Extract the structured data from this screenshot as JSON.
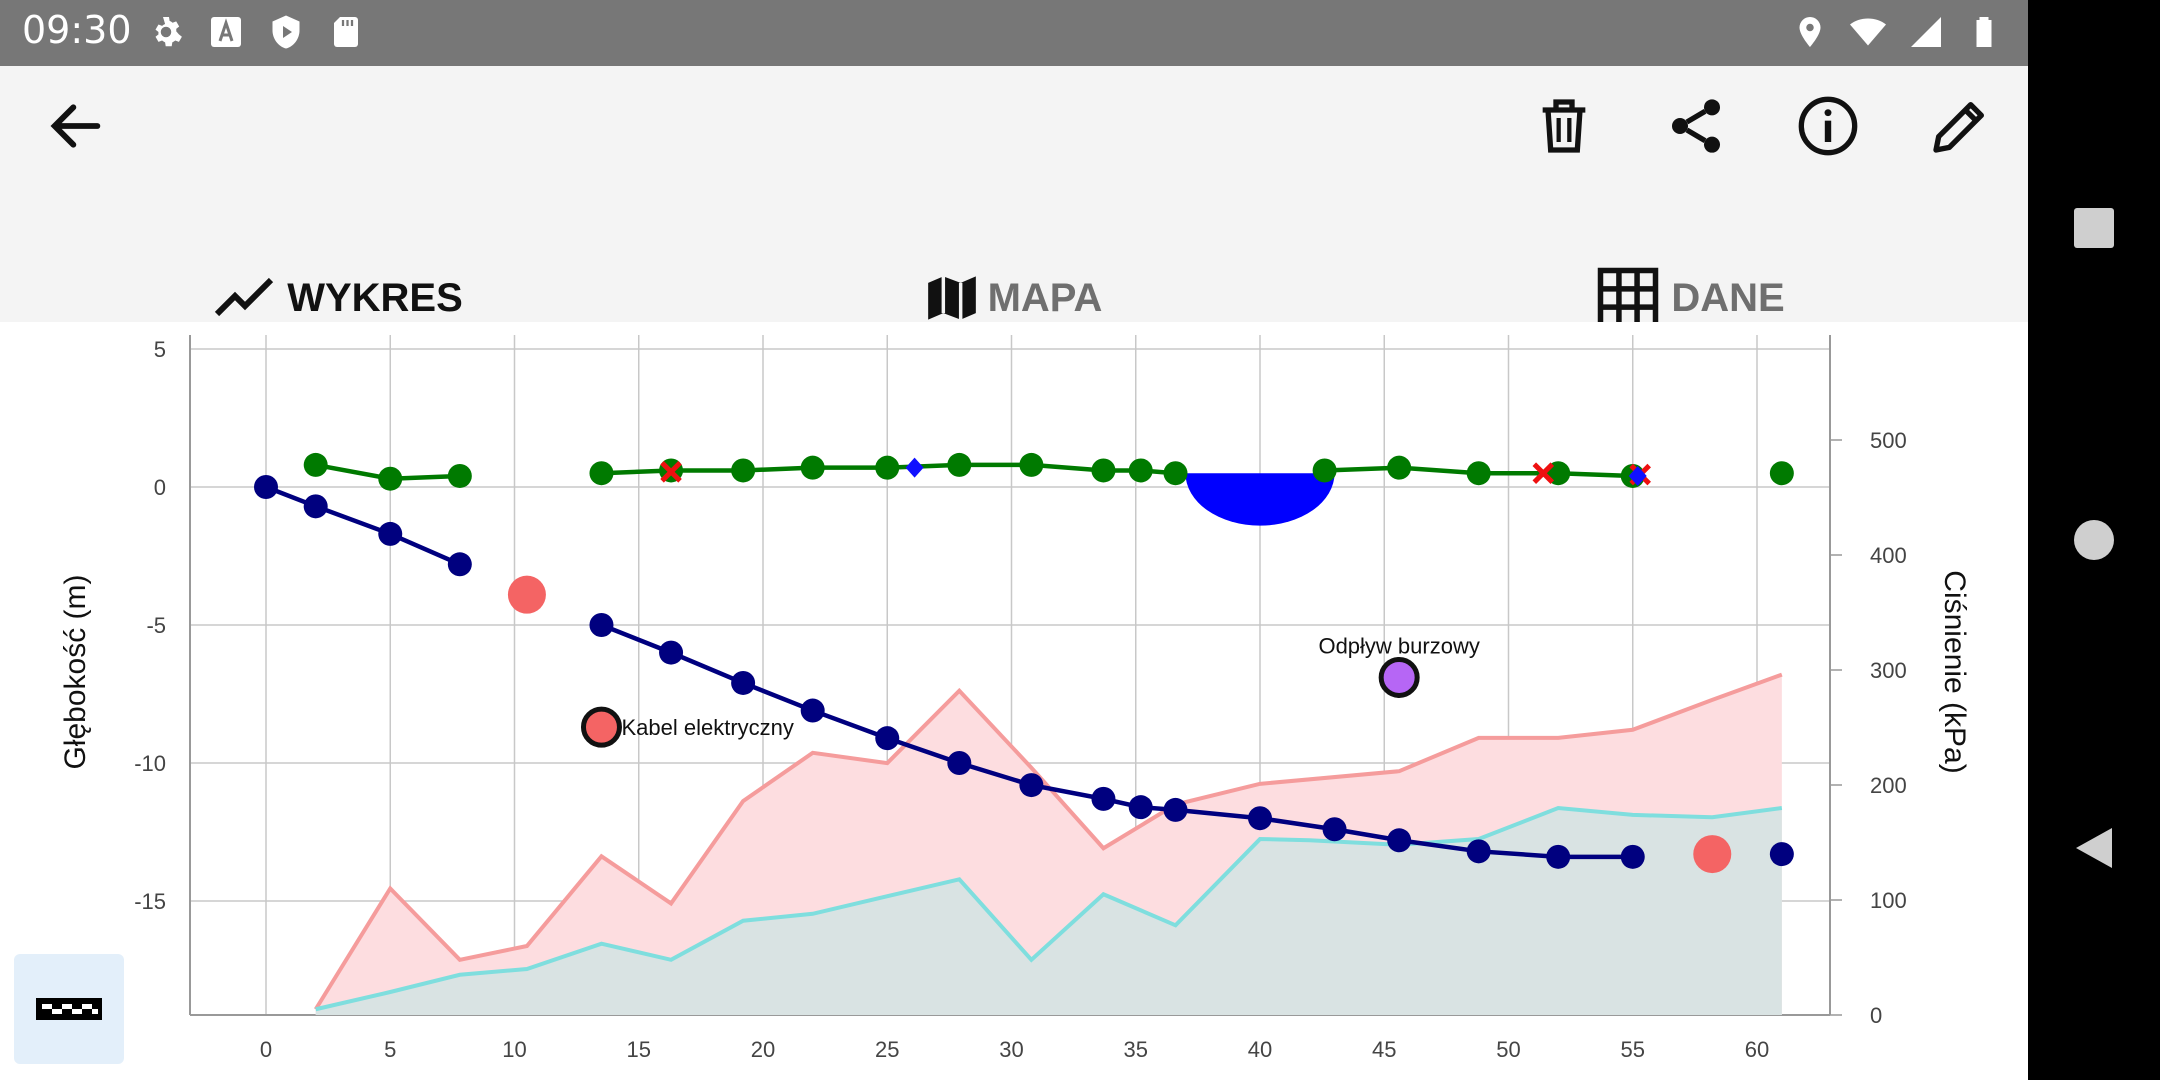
{
  "status_bar": {
    "time": "09:30",
    "left_icons": [
      "gear-icon",
      "font-a-icon",
      "shield-play-icon",
      "sd-card-icon"
    ],
    "right_icons": [
      "location-icon",
      "wifi-icon",
      "signal-icon",
      "battery-icon"
    ]
  },
  "toolbar": {
    "back": "back-arrow-icon",
    "actions": [
      "trash-icon",
      "share-icon",
      "info-icon",
      "pencil-icon"
    ]
  },
  "tabs": [
    {
      "label": "WYKRES",
      "icon": "line-chart-icon",
      "active": true
    },
    {
      "label": "MAPA",
      "icon": "map-icon",
      "active": false
    },
    {
      "label": "DANE",
      "icon": "grid-icon",
      "active": false
    }
  ],
  "colors": {
    "accent": "#4a86c5",
    "depth_line": "#00007f",
    "terrain_line": "#007a00",
    "pressure_fill": "#fddde0",
    "pressure_line": "#f59c9c",
    "second_fill": "#d9e3e3",
    "second_line": "#7fdede",
    "marker_red": "#f46464",
    "marker_purple": "#b666f5",
    "water": "#0000ff"
  },
  "chart_data": {
    "type": "line",
    "ylabel": "Głębokość (m)",
    "y2label": "Ciśnienie (kPa)",
    "xlim": [
      -3,
      63
    ],
    "ylim": [
      -19,
      5.5
    ],
    "y2lim": [
      0,
      500
    ],
    "x_ticks": [
      0,
      5,
      10,
      15,
      20,
      25,
      30,
      35,
      40,
      45,
      50,
      55,
      60
    ],
    "y_ticks": [
      5,
      0,
      -5,
      -10,
      -15
    ],
    "y2_ticks": [
      500,
      400,
      300,
      200,
      100,
      0
    ],
    "grid": true,
    "series": [
      {
        "kind": "depth",
        "points": [
          [
            0,
            0
          ],
          [
            2,
            -0.7
          ],
          [
            5,
            -1.7
          ],
          [
            7.8,
            -2.8
          ],
          [
            13.5,
            -5
          ],
          [
            16.3,
            -6
          ],
          [
            19.2,
            -7.1
          ],
          [
            22,
            -8.1
          ],
          [
            25,
            -9.1
          ],
          [
            27.9,
            -10
          ],
          [
            30.8,
            -10.8
          ],
          [
            33.7,
            -11.3
          ],
          [
            35.2,
            -11.6
          ],
          [
            36.6,
            -11.7
          ],
          [
            40,
            -12
          ],
          [
            43,
            -12.4
          ],
          [
            45.6,
            -12.8
          ],
          [
            48.8,
            -13.2
          ],
          [
            52,
            -13.4
          ],
          [
            55,
            -13.4
          ],
          [
            61,
            -13.3
          ]
        ]
      },
      {
        "kind": "terrain",
        "points": [
          [
            2,
            0.8
          ],
          [
            5,
            0.3
          ],
          [
            7.8,
            0.4
          ],
          [
            13.5,
            0.5
          ],
          [
            16.3,
            0.6
          ],
          [
            19.2,
            0.6
          ],
          [
            22,
            0.7
          ],
          [
            25,
            0.7
          ],
          [
            27.9,
            0.8
          ],
          [
            30.8,
            0.8
          ],
          [
            33.7,
            0.6
          ],
          [
            35.2,
            0.6
          ],
          [
            36.6,
            0.5
          ],
          [
            42.6,
            0.6
          ],
          [
            45.6,
            0.7
          ],
          [
            48.8,
            0.5
          ],
          [
            52,
            0.5
          ],
          [
            55,
            0.4
          ]
        ]
      },
      {
        "kind": "pressure",
        "points": [
          [
            2,
            5
          ],
          [
            5,
            110
          ],
          [
            7.8,
            48
          ],
          [
            10.5,
            60
          ],
          [
            13.5,
            138
          ],
          [
            16.3,
            97
          ],
          [
            19.2,
            186
          ],
          [
            22,
            228
          ],
          [
            25,
            219
          ],
          [
            27.9,
            282
          ],
          [
            30.8,
            215
          ],
          [
            33.7,
            145
          ],
          [
            36.6,
            183
          ],
          [
            40,
            201
          ],
          [
            45.6,
            212
          ],
          [
            48.8,
            241
          ],
          [
            52,
            241
          ],
          [
            55,
            248
          ],
          [
            58.2,
            274
          ],
          [
            61,
            296
          ]
        ]
      },
      {
        "kind": "secondary",
        "points": [
          [
            2,
            5
          ],
          [
            5,
            20
          ],
          [
            7.8,
            35
          ],
          [
            10.5,
            40
          ],
          [
            13.5,
            62
          ],
          [
            16.3,
            48
          ],
          [
            19.2,
            82
          ],
          [
            22,
            88
          ],
          [
            27.9,
            118
          ],
          [
            30.8,
            48
          ],
          [
            33.7,
            105
          ],
          [
            36.6,
            78
          ],
          [
            40,
            153
          ],
          [
            42,
            152
          ],
          [
            45.6,
            148
          ],
          [
            48.8,
            153
          ],
          [
            52,
            180
          ],
          [
            55,
            174
          ],
          [
            58.2,
            172
          ],
          [
            61,
            180
          ]
        ]
      }
    ],
    "isolated_points": [
      {
        "x": 61,
        "y": 0.5,
        "kind": "terrain"
      }
    ],
    "markers": [
      {
        "x": 10.5,
        "y": -3.9,
        "kind": "red-marker"
      },
      {
        "x": 13.5,
        "y": -8.7,
        "kind": "red-marker-outlined",
        "label": "Kabel elektryczny"
      },
      {
        "x": 45.6,
        "y": -6.9,
        "kind": "purple-marker-outlined",
        "label": "Odpływ burzowy"
      },
      {
        "x": 58.2,
        "y": -13.3,
        "kind": "red-marker"
      }
    ],
    "cross_markers": [
      [
        16.3,
        0.55
      ],
      [
        51.4,
        0.5
      ],
      [
        55.3,
        0.45
      ]
    ],
    "diamond_markers": [
      [
        26.1,
        0.7
      ],
      [
        55.2,
        0.4
      ]
    ],
    "water_body": {
      "x_start": 37,
      "x_end": 43,
      "top": 0.5,
      "bottom": -1.4
    }
  },
  "legend_button": "checkered-flag-icon"
}
